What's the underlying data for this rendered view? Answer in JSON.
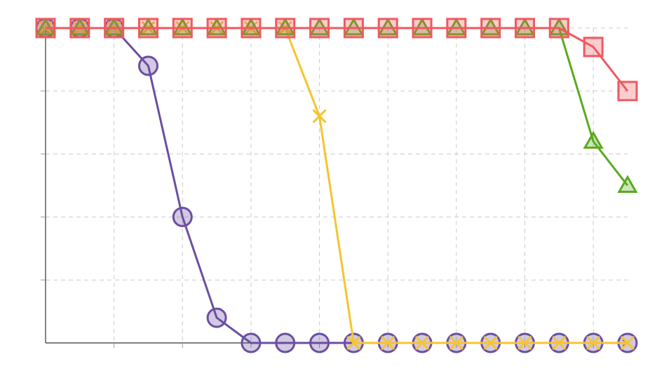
{
  "chart_data": {
    "type": "line",
    "title": "",
    "xlabel": "",
    "ylabel": "",
    "x": [
      0,
      1,
      2,
      3,
      4,
      5,
      6,
      7,
      8,
      9,
      10,
      11,
      12,
      13,
      14,
      15,
      16,
      17
    ],
    "xlim": [
      0,
      17
    ],
    "ylim": [
      0,
      1
    ],
    "grid": true,
    "legend": "none",
    "series": [
      {
        "marker": "circle",
        "color": "#6b4fa0",
        "values": [
          1,
          1,
          1,
          0.88,
          0.4,
          0.08,
          0,
          0,
          0,
          0,
          0,
          0,
          0,
          0,
          0,
          0,
          0,
          0
        ]
      },
      {
        "marker": "x",
        "color": "#f5c431",
        "values": [
          1,
          1,
          1,
          1,
          1,
          1,
          1,
          1,
          0.72,
          0,
          0,
          0,
          0,
          0,
          0,
          0,
          0,
          0
        ]
      },
      {
        "marker": "triangle",
        "color": "#5aaa1e",
        "values": [
          1,
          1,
          1,
          1,
          1,
          1,
          1,
          1,
          1,
          1,
          1,
          1,
          1,
          1,
          1,
          1,
          0.64,
          0.5
        ]
      },
      {
        "marker": "square",
        "color": "#ef5a5f",
        "values": [
          1,
          1,
          1,
          1,
          1,
          1,
          1,
          1,
          1,
          1,
          1,
          1,
          1,
          1,
          1,
          1,
          0.94,
          0.8
        ]
      }
    ]
  }
}
